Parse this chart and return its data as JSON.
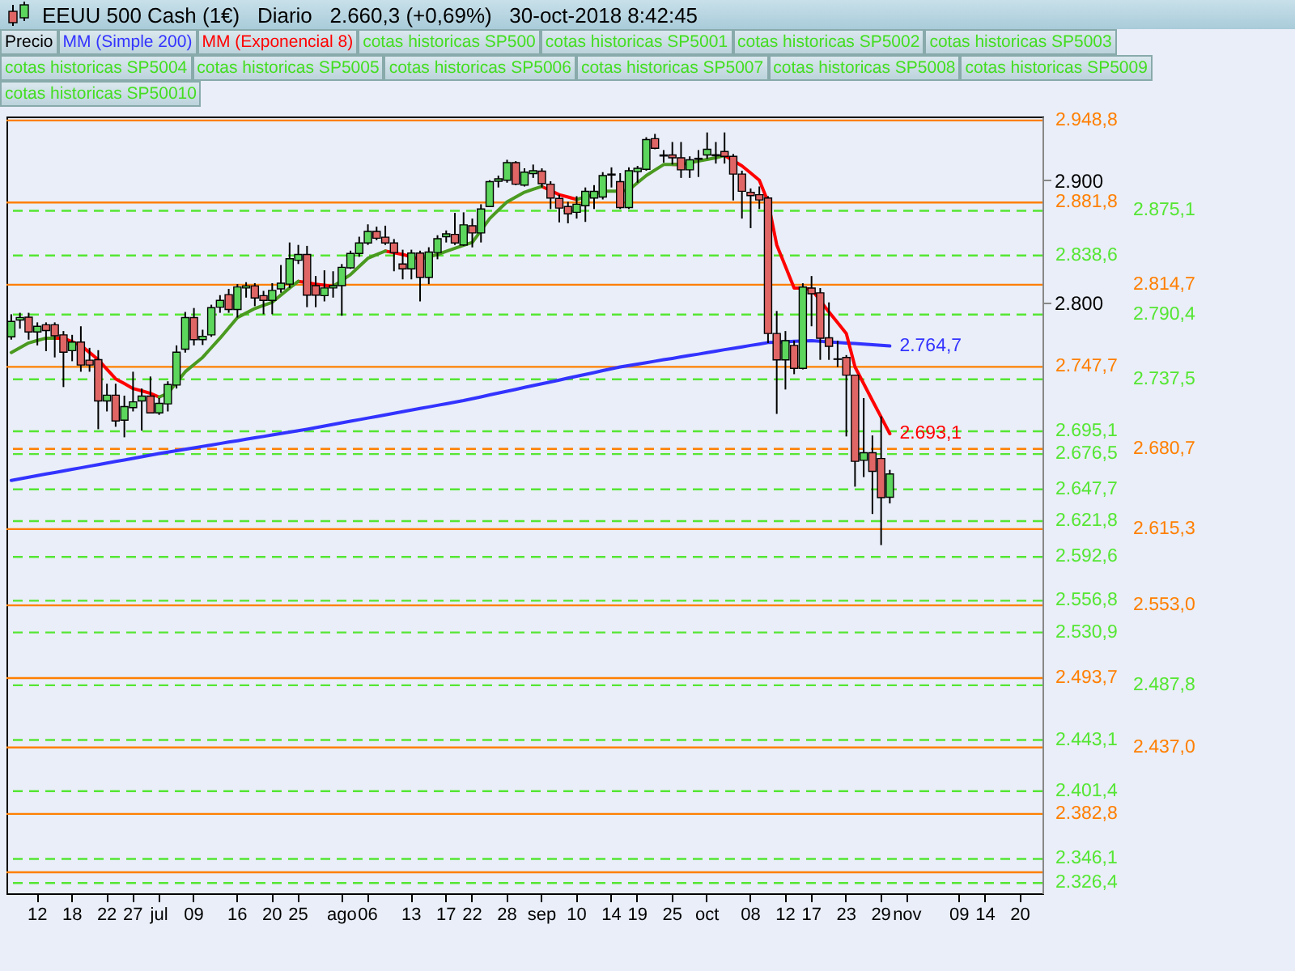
{
  "chart_data": {
    "type": "candlestick",
    "title": "EEUU 500 Cash (1€)   Diario   2.660,3 (+0,69%)   30-oct-2018 8:42:45",
    "categories": [
      null,
      null,
      null,
      "12",
      null,
      null,
      null,
      "18",
      null,
      null,
      null,
      "22",
      null,
      null,
      "27",
      null,
      null,
      "jul",
      null,
      null,
      null,
      "09",
      null,
      null,
      null,
      null,
      "16",
      null,
      null,
      null,
      "20",
      null,
      null,
      "25",
      null,
      null,
      null,
      null,
      "ago",
      null,
      null,
      "06",
      null,
      null,
      null,
      null,
      "13",
      null,
      null,
      null,
      "17",
      null,
      null,
      "22",
      null,
      null,
      null,
      "28",
      null,
      null,
      null,
      "sep",
      null,
      null,
      null,
      "10",
      null,
      null,
      null,
      "14",
      null,
      null,
      "19",
      null,
      null,
      null,
      "25",
      null,
      null,
      null,
      "oct",
      null,
      null,
      null,
      null,
      "08",
      null,
      null,
      null,
      "12",
      null,
      null,
      "17",
      null,
      null,
      null,
      "23",
      null,
      null,
      null,
      "29",
      null,
      null,
      "nov",
      null,
      null,
      null,
      null,
      null,
      "09",
      null,
      null,
      "14",
      null,
      null,
      null,
      "20",
      null,
      null
    ],
    "ylim": [
      2318,
      2952
    ],
    "yticks": [
      {
        "value": 2800,
        "label": "2.800"
      },
      {
        "value": 2900,
        "label": "2.900"
      }
    ],
    "legend": "top",
    "series": [
      {
        "name": "Precio",
        "type": "candlestick",
        "color": "#000000",
        "ohlc": [
          [
            2772.2,
            2790.6,
            2769.9,
            2784.7
          ],
          [
            2785.9,
            2791.8,
            2778.9,
            2788.0
          ],
          [
            2788.2,
            2791.8,
            2769.9,
            2776.2
          ],
          [
            2776.2,
            2784.0,
            2765.2,
            2780.8
          ],
          [
            2782.0,
            2784.0,
            2760.5,
            2777.3
          ],
          [
            2782.0,
            2784.0,
            2755.4,
            2773.0
          ],
          [
            2773.8,
            2776.9,
            2731.2,
            2759.7
          ],
          [
            2760.9,
            2773.8,
            2752.3,
            2767.9
          ],
          [
            2767.9,
            2780.8,
            2743.7,
            2749.2
          ],
          [
            2753.1,
            2763.2,
            2743.7,
            2749.2
          ],
          [
            2753.5,
            2761.3,
            2696.8,
            2719.9
          ],
          [
            2719.9,
            2733.9,
            2711.3,
            2724.6
          ],
          [
            2724.6,
            2733.9,
            2698.8,
            2703.5
          ],
          [
            2704.2,
            2724.2,
            2690.2,
            2715.2
          ],
          [
            2714.4,
            2743.7,
            2711.3,
            2719.1
          ],
          [
            2719.9,
            2730.0,
            2695.6,
            2723.8
          ],
          [
            2723.8,
            2739.8,
            2709.7,
            2710.1
          ],
          [
            2710.1,
            2722.2,
            2708.5,
            2717.9
          ],
          [
            2717.5,
            2735.9,
            2711.3,
            2733.2
          ],
          [
            2732.8,
            2765.2,
            2730.0,
            2759.7
          ],
          [
            2762.1,
            2792.5,
            2759.3,
            2787.9
          ],
          [
            2787.9,
            2795.7,
            2765.2,
            2769.9
          ],
          [
            2769.9,
            2778.0,
            2765.5,
            2772.6
          ],
          [
            2773.8,
            2798.4,
            2772.2,
            2796.0
          ],
          [
            2796.4,
            2806.2,
            2791.8,
            2801.9
          ],
          [
            2806.6,
            2811.3,
            2791.8,
            2794.5
          ],
          [
            2794.5,
            2815.2,
            2787.9,
            2812.9
          ],
          [
            2812.1,
            2816.8,
            2804.2,
            2813.7
          ],
          [
            2813.7,
            2816.0,
            2797.2,
            2803.9
          ],
          [
            2805.8,
            2809.7,
            2790.6,
            2801.9
          ],
          [
            2801.9,
            2816.0,
            2790.6,
            2810.1
          ],
          [
            2811.3,
            2830.8,
            2808.2,
            2816.0
          ],
          [
            2815.2,
            2849.2,
            2812.1,
            2835.9
          ],
          [
            2834.7,
            2847.2,
            2831.6,
            2839.4
          ],
          [
            2839.4,
            2846.4,
            2796.4,
            2806.2
          ],
          [
            2814.0,
            2821.8,
            2796.4,
            2806.2
          ],
          [
            2805.8,
            2826.5,
            2801.1,
            2812.1
          ],
          [
            2812.1,
            2825.7,
            2804.2,
            2814.0
          ],
          [
            2814.0,
            2831.6,
            2789.4,
            2828.9
          ],
          [
            2828.5,
            2842.5,
            2827.7,
            2840.2
          ],
          [
            2840.2,
            2853.9,
            2837.5,
            2848.8
          ],
          [
            2848.8,
            2864.0,
            2847.2,
            2858.2
          ],
          [
            2858.2,
            2862.1,
            2851.1,
            2852.7
          ],
          [
            2853.5,
            2862.9,
            2847.2,
            2848.8
          ],
          [
            2848.8,
            2852.0,
            2825.7,
            2841.0
          ],
          [
            2831.6,
            2843.3,
            2819.1,
            2827.7
          ],
          [
            2827.7,
            2843.3,
            2819.1,
            2840.6
          ],
          [
            2840.6,
            2842.5,
            2801.1,
            2820.7
          ],
          [
            2820.7,
            2845.3,
            2815.2,
            2841.4
          ],
          [
            2841.0,
            2855.1,
            2835.5,
            2852.3
          ],
          [
            2853.9,
            2859.0,
            2849.2,
            2856.2
          ],
          [
            2855.8,
            2873.4,
            2847.2,
            2848.8
          ],
          [
            2847.2,
            2873.8,
            2846.4,
            2863.6
          ],
          [
            2862.8,
            2868.7,
            2845.2,
            2857.0
          ],
          [
            2857.0,
            2880.4,
            2849.2,
            2876.5
          ],
          [
            2878.5,
            2900.0,
            2878.5,
            2898.8
          ],
          [
            2899.2,
            2903.8,
            2894.1,
            2901.1
          ],
          [
            2900.0,
            2916.7,
            2898.0,
            2914.4
          ],
          [
            2914.4,
            2915.6,
            2896.0,
            2896.8
          ],
          [
            2896.0,
            2909.7,
            2894.9,
            2906.6
          ],
          [
            2905.4,
            2912.8,
            2901.9,
            2907.8
          ],
          [
            2907.4,
            2909.7,
            2894.1,
            2897.2
          ],
          [
            2896.8,
            2899.2,
            2876.5,
            2885.5
          ],
          [
            2885.1,
            2888.2,
            2865.6,
            2877.3
          ],
          [
            2878.5,
            2882.4,
            2864.8,
            2872.6
          ],
          [
            2873.8,
            2887.0,
            2868.7,
            2880.4
          ],
          [
            2879.2,
            2894.1,
            2866.0,
            2890.9
          ],
          [
            2885.5,
            2896.0,
            2876.5,
            2890.9
          ],
          [
            2886.3,
            2906.6,
            2884.3,
            2903.8
          ],
          [
            2904.2,
            2910.5,
            2894.1,
            2905.0
          ],
          [
            2898.8,
            2905.8,
            2876.5,
            2877.7
          ],
          [
            2877.7,
            2910.5,
            2876.5,
            2907.8
          ],
          [
            2907.0,
            2911.7,
            2898.0,
            2909.7
          ],
          [
            2908.9,
            2935.1,
            2907.8,
            2933.2
          ],
          [
            2933.9,
            2937.8,
            2925.3,
            2926.1
          ],
          [
            2919.8,
            2924.6,
            2914.4,
            2920.6
          ],
          [
            2920.6,
            2931.2,
            2912.8,
            2918.3
          ],
          [
            2918.3,
            2931.2,
            2901.9,
            2908.5
          ],
          [
            2908.5,
            2919.5,
            2901.9,
            2916.7
          ],
          [
            2917.1,
            2924.6,
            2902.7,
            2917.9
          ],
          [
            2920.6,
            2939.0,
            2917.5,
            2925.3
          ],
          [
            2920.8,
            2931.2,
            2913.6,
            2920.0
          ],
          [
            2923.4,
            2939.0,
            2913.6,
            2919.5
          ],
          [
            2919.5,
            2921.4,
            2883.5,
            2905.0
          ],
          [
            2905.0,
            2907.8,
            2868.7,
            2891.0
          ],
          [
            2890.2,
            2893.3,
            2860.9,
            2887.4
          ],
          [
            2888.2,
            2894.9,
            2876.5,
            2883.9
          ],
          [
            2885.5,
            2887.0,
            2767.1,
            2774.9
          ],
          [
            2774.9,
            2793.3,
            2709.3,
            2753.4
          ],
          [
            2753.4,
            2776.9,
            2729.2,
            2769.1
          ],
          [
            2765.2,
            2769.1,
            2741.7,
            2746.4
          ],
          [
            2746.4,
            2815.9,
            2745.6,
            2812.8
          ],
          [
            2812.0,
            2821.8,
            2780.8,
            2807.4
          ],
          [
            2808.1,
            2812.0,
            2753.4,
            2771.0
          ],
          [
            2771.4,
            2800.3,
            2753.4,
            2764.4
          ],
          [
            2754.2,
            2769.1,
            2747.6,
            2753.8
          ],
          [
            2755.4,
            2757.3,
            2690.9,
            2740.9
          ],
          [
            2740.9,
            2740.9,
            2649.9,
            2670.6
          ],
          [
            2671.4,
            2722.2,
            2657.7,
            2677.6
          ],
          [
            2677.6,
            2691.7,
            2627.6,
            2662.4
          ],
          [
            2672.9,
            2707.3,
            2602.2,
            2640.9
          ],
          [
            2641.3,
            2663.6,
            2636.2,
            2660.3
          ],
          null,
          null,
          null,
          null,
          null,
          null,
          null,
          null,
          null,
          null,
          null,
          null,
          null,
          null,
          null,
          null,
          null
        ]
      },
      {
        "name": "MM (Simple 200)",
        "type": "line",
        "color": "#3333ff",
        "values": [
          2655.0,
          2656.3,
          2657.6,
          2658.9,
          2660.2,
          2661.4,
          2662.7,
          2664.0,
          2665.3,
          2666.6,
          2667.9,
          2669.2,
          2670.5,
          2671.7,
          2673.0,
          2674.3,
          2675.6,
          2676.9,
          2678.1,
          2679.2,
          2680.4,
          2681.6,
          2682.8,
          2683.9,
          2685.1,
          2686.3,
          2687.4,
          2688.6,
          2689.8,
          2690.9,
          2692.1,
          2693.3,
          2694.5,
          2695.6,
          2696.8,
          2698.1,
          2699.4,
          2700.7,
          2702.0,
          2703.3,
          2704.6,
          2705.9,
          2707.2,
          2708.5,
          2709.8,
          2711.1,
          2712.4,
          2713.7,
          2715.0,
          2716.3,
          2717.6,
          2718.9,
          2720.2,
          2721.7,
          2723.2,
          2724.8,
          2726.3,
          2727.8,
          2729.3,
          2730.9,
          2732.4,
          2733.9,
          2735.4,
          2736.9,
          2738.5,
          2740.0,
          2741.5,
          2743.0,
          2744.6,
          2746.1,
          2747.6,
          2748.8,
          2749.9,
          2751.1,
          2752.3,
          2753.5,
          2754.6,
          2755.8,
          2757.0,
          2758.1,
          2759.3,
          2760.5,
          2761.7,
          2762.8,
          2764.0,
          2765.2,
          2766.3,
          2767.5,
          2767.8,
          2768.1,
          2768.5,
          2768.8,
          2769.1,
          2768.6,
          2768.1,
          2767.6,
          2767.1,
          2766.7,
          2766.2,
          2765.7,
          2765.2,
          2764.7,
          null,
          null,
          null,
          null,
          null,
          null,
          null,
          null,
          null,
          null,
          null,
          null,
          null,
          null,
          null,
          null,
          null
        ],
        "value_labels": [
          null,
          null,
          null,
          null,
          null,
          null,
          null,
          null,
          null,
          null,
          null,
          null,
          null,
          null,
          null,
          null,
          null,
          null,
          null,
          null,
          null,
          null,
          null,
          null,
          null,
          null,
          null,
          null,
          null,
          null,
          null,
          null,
          null,
          null,
          null,
          null,
          null,
          null,
          null,
          null,
          null,
          null,
          null,
          null,
          null,
          null,
          null,
          null,
          null,
          null,
          null,
          null,
          null,
          null,
          null,
          null,
          null,
          null,
          null,
          null,
          null,
          null,
          null,
          null,
          null,
          null,
          null,
          null,
          null,
          null,
          null,
          null,
          null,
          null,
          null,
          null,
          null,
          null,
          null,
          null,
          null,
          null,
          null,
          null,
          null,
          null,
          null,
          null,
          null,
          null,
          null,
          null,
          null,
          null,
          null,
          null,
          null,
          null,
          null,
          null,
          null,
          "2.764,7",
          null,
          null,
          null,
          null,
          null,
          null,
          null,
          null,
          null,
          null,
          null,
          null,
          null,
          null,
          null,
          null,
          null
        ]
      },
      {
        "name": "MM (Exponencial 8)",
        "type": "line",
        "color": "#ff0000",
        "values": [
          null,
          null,
          null,
          null,
          null,
          2771.1,
          2771.1,
          2768.2,
          2765.2,
          2759.4,
          2753.5,
          2745.7,
          2737.9,
          2734.0,
          2730.0,
          2728.1,
          2726.1,
          2723.0,
          null,
          null,
          null,
          null,
          null,
          null,
          null,
          null,
          null,
          null,
          null,
          null,
          null,
          null,
          null,
          2817.5,
          2816.4,
          2815.2,
          2814.3,
          2813.3,
          null,
          null,
          null,
          null,
          null,
          2842.2,
          2840.8,
          2839.4,
          2837.5,
          2835.5,
          null,
          null,
          null,
          null,
          null,
          null,
          null,
          null,
          null,
          null,
          null,
          null,
          null,
          2894.9,
          2891.6,
          2888.2,
          2886.3,
          2884.3,
          null,
          null,
          null,
          null,
          null,
          null,
          null,
          null,
          null,
          null,
          2912.8,
          2912.8,
          null,
          null,
          null,
          null,
          2920.3,
          2916.0,
          2911.7,
          2905.9,
          2900.0,
          2882.4,
          2847.2,
          2829.6,
          2812.0,
          2812.0,
          2810.9,
          2801.7,
          2792.5,
          2783.7,
          2774.9,
          2747.6,
          2733.9,
          2720.2,
          2706.7,
          2693.1,
          null,
          null,
          null,
          null,
          null,
          null,
          null,
          null,
          null,
          null,
          null,
          null,
          null,
          null,
          null,
          null,
          null
        ],
        "value_labels": [
          null,
          null,
          null,
          null,
          null,
          null,
          null,
          null,
          null,
          null,
          null,
          null,
          null,
          null,
          null,
          null,
          null,
          null,
          null,
          null,
          null,
          null,
          null,
          null,
          null,
          null,
          null,
          null,
          null,
          null,
          null,
          null,
          null,
          null,
          null,
          null,
          null,
          null,
          null,
          null,
          null,
          null,
          null,
          null,
          null,
          null,
          null,
          null,
          null,
          null,
          null,
          null,
          null,
          null,
          null,
          null,
          null,
          null,
          null,
          null,
          null,
          null,
          null,
          null,
          null,
          null,
          null,
          null,
          null,
          null,
          null,
          null,
          null,
          null,
          null,
          null,
          null,
          null,
          null,
          null,
          null,
          null,
          null,
          null,
          null,
          null,
          null,
          null,
          null,
          null,
          null,
          null,
          null,
          null,
          null,
          null,
          null,
          null,
          null,
          null,
          null,
          "2.693,1",
          null,
          null,
          null,
          null,
          null,
          null,
          null,
          null,
          null,
          null,
          null,
          null,
          null,
          null,
          null,
          null,
          null
        ]
      },
      {
        "type": "line",
        "color": "#4a9a20",
        "values": [
          2759.4,
          2763.3,
          2767.2,
          2769.2,
          2771.1,
          2771.1,
          null,
          null,
          null,
          null,
          null,
          null,
          null,
          null,
          null,
          null,
          null,
          2723.0,
          2726.1,
          2734.9,
          2743.7,
          2749.6,
          2755.4,
          2763.3,
          2771.1,
          2779.5,
          2787.9,
          2791.6,
          2795.3,
          2797.9,
          2800.4,
          2806.3,
          2812.1,
          2817.5,
          null,
          null,
          null,
          2813.3,
          2818.2,
          2823.0,
          2829.7,
          2836.3,
          2839.3,
          2842.2,
          null,
          null,
          null,
          2835.5,
          2837.5,
          2839.4,
          2842.0,
          2844.5,
          2846.9,
          2849.2,
          2859.0,
          2868.7,
          2875.6,
          2882.4,
          2886.3,
          2890.2,
          2892.6,
          2894.9,
          null,
          null,
          null,
          2884.3,
          2886.3,
          2888.2,
          2891.0,
          2891.0,
          2891.0,
          2892.1,
          2898.0,
          2903.8,
          2908.3,
          2912.8,
          2912.8,
          2912.8,
          2914.2,
          2915.6,
          2917.0,
          2918.3,
          2920.3,
          null,
          null,
          null,
          null,
          null,
          null,
          null,
          null,
          null,
          null,
          null,
          null,
          null,
          null,
          null,
          null,
          null,
          null,
          null,
          null,
          null,
          null,
          null,
          null,
          null,
          null,
          null,
          null,
          null,
          null,
          null,
          null,
          null,
          null,
          null,
          null
        ]
      }
    ],
    "ref_lines": [
      {
        "axis": "y",
        "value": 2948.8,
        "label": "2.948,8",
        "color": "#ff7f00",
        "line_style": "solid"
      },
      {
        "axis": "y",
        "value": 2881.8,
        "label": "2.881,8",
        "color": "#ff7f00",
        "line_style": "solid"
      },
      {
        "axis": "y",
        "value": 2875.1,
        "label": "2.875,1",
        "color": "#55e633",
        "line_style": "dashed"
      },
      {
        "axis": "y",
        "value": 2838.6,
        "label": "2.838,6",
        "color": "#55e633",
        "line_style": "dashed"
      },
      {
        "axis": "y",
        "value": 2814.7,
        "label": "2.814,7",
        "color": "#ff7f00",
        "line_style": "solid"
      },
      {
        "axis": "y",
        "value": 2790.4,
        "label": "2.790,4",
        "color": "#55e633",
        "line_style": "dashed"
      },
      {
        "axis": "y",
        "value": 2747.7,
        "label": "2.747,7",
        "color": "#ff7f00",
        "line_style": "solid"
      },
      {
        "axis": "y",
        "value": 2737.5,
        "label": "2.737,5",
        "color": "#55e633",
        "line_style": "dashed"
      },
      {
        "axis": "y",
        "value": 2695.1,
        "label": "2.695,1",
        "color": "#55e633",
        "line_style": "dashed"
      },
      {
        "axis": "y",
        "value": 2680.7,
        "label": "2.680,7",
        "color": "#ff7f00",
        "line_style": "dashed"
      },
      {
        "axis": "y",
        "value": 2676.5,
        "label": "2.676,5",
        "color": "#55e633",
        "line_style": "dashed"
      },
      {
        "axis": "y",
        "value": 2647.7,
        "label": "2.647,7",
        "color": "#55e633",
        "line_style": "dashed"
      },
      {
        "axis": "y",
        "value": 2621.8,
        "label": "2.621,8",
        "color": "#55e633",
        "line_style": "dashed"
      },
      {
        "axis": "y",
        "value": 2615.3,
        "label": "2.615,3",
        "color": "#ff7f00",
        "line_style": "solid"
      },
      {
        "axis": "y",
        "value": 2592.6,
        "label": "2.592,6",
        "color": "#55e633",
        "line_style": "dashed"
      },
      {
        "axis": "y",
        "value": 2556.8,
        "label": "2.556,8",
        "color": "#55e633",
        "line_style": "dashed"
      },
      {
        "axis": "y",
        "value": 2553.0,
        "label": "2.553,0",
        "color": "#ff7f00",
        "line_style": "solid"
      },
      {
        "axis": "y",
        "value": 2530.9,
        "label": "2.530,9",
        "color": "#55e633",
        "line_style": "dashed"
      },
      {
        "axis": "y",
        "value": 2493.7,
        "label": "2.493,7",
        "color": "#ff7f00",
        "line_style": "solid"
      },
      {
        "axis": "y",
        "value": 2487.8,
        "label": "2.487,8",
        "color": "#55e633",
        "line_style": "dashed"
      },
      {
        "axis": "y",
        "value": 2443.1,
        "label": "2.443,1",
        "color": "#55e633",
        "line_style": "dashed"
      },
      {
        "axis": "y",
        "value": 2437.0,
        "label": "2.437,0",
        "color": "#ff7f00",
        "line_style": "solid"
      },
      {
        "axis": "y",
        "value": 2401.4,
        "label": "2.401,4",
        "color": "#55e633",
        "line_style": "dashed"
      },
      {
        "axis": "y",
        "value": 2382.8,
        "label": "2.382,8",
        "color": "#ff7f00",
        "line_style": "solid"
      },
      {
        "axis": "y",
        "value": 2346.1,
        "label": "2.346,1",
        "color": "#55e633",
        "line_style": "dashed"
      },
      {
        "axis": "y",
        "value": 2335.2,
        "label": null,
        "color": "#ff7f00",
        "line_style": "solid"
      },
      {
        "axis": "y",
        "value": 2326.4,
        "label": "2.326,4",
        "color": "#55e633",
        "line_style": "dashed"
      }
    ],
    "annotations": [
      "cotas historicas SP500",
      "cotas historicas SP5001",
      "cotas historicas SP5002",
      "cotas historicas SP5003",
      "cotas historicas SP5004",
      "cotas historicas SP5005",
      "cotas historicas SP5006",
      "cotas historicas SP5007",
      "cotas historicas SP5008",
      "cotas historicas SP5009",
      "cotas historicas SP50010"
    ]
  }
}
